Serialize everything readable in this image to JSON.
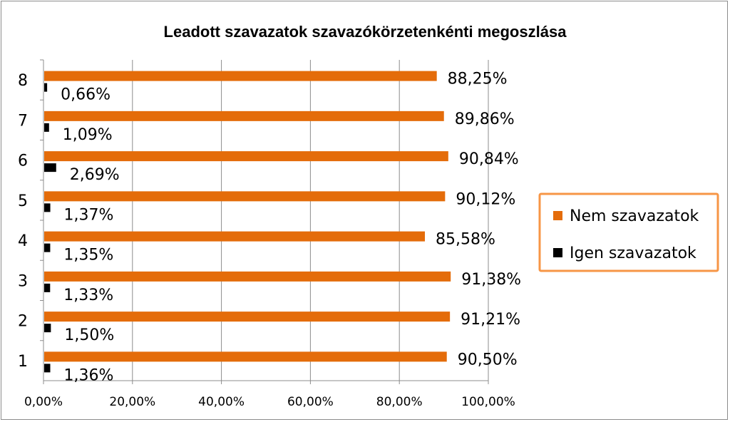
{
  "chart_data": {
    "type": "bar",
    "orientation": "horizontal",
    "title": "Leadott szavazatok szavazókörzetenkénti megoszlása",
    "categories": [
      "1",
      "2",
      "3",
      "4",
      "5",
      "6",
      "7",
      "8"
    ],
    "series": [
      {
        "name": "Nem szavazatok",
        "color": "#E46C0A",
        "values": [
          90.5,
          91.21,
          91.38,
          85.58,
          90.12,
          90.84,
          89.86,
          88.25
        ],
        "labels": [
          "90,50%",
          "91,21%",
          "91,38%",
          "85,58%",
          "90,12%",
          "90,84%",
          "89,86%",
          "88,25%"
        ]
      },
      {
        "name": "Igen szavazatok",
        "color": "#000000",
        "values": [
          1.36,
          1.5,
          1.33,
          1.35,
          1.37,
          2.69,
          1.09,
          0.66
        ],
        "labels": [
          "1,36%",
          "1,50%",
          "1,33%",
          "1,35%",
          "1,37%",
          "2,69%",
          "1,09%",
          "0,66%"
        ]
      }
    ],
    "xlim": [
      0,
      100
    ],
    "xticks": [
      0,
      20,
      40,
      60,
      80,
      100
    ],
    "xtick_labels": [
      "0,00%",
      "20,00%",
      "40,00%",
      "60,00%",
      "80,00%",
      "100,00%"
    ],
    "grid": true,
    "legend_position": "right",
    "legend_border_color": "#F79646"
  }
}
